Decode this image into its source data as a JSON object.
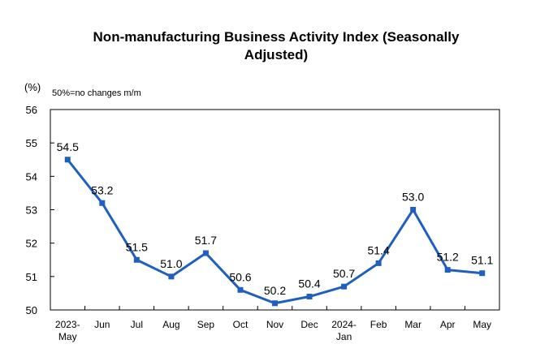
{
  "chart_data": {
    "type": "line",
    "title_lines": [
      "Non-manufacturing Business Activity Index (Seasonally",
      "Adjusted)"
    ],
    "ylabel": "(%)",
    "note": "50%=no changes m/m",
    "categories": [
      [
        "2023-",
        "May"
      ],
      [
        "Jun"
      ],
      [
        "Jul"
      ],
      [
        "Aug"
      ],
      [
        "Sep"
      ],
      [
        "Oct"
      ],
      [
        "Nov"
      ],
      [
        "Dec"
      ],
      [
        "2024-",
        "Jan"
      ],
      [
        "Feb"
      ],
      [
        "Mar"
      ],
      [
        "Apr"
      ],
      [
        "May"
      ]
    ],
    "values": [
      54.5,
      53.2,
      51.5,
      51.0,
      51.7,
      50.6,
      50.2,
      50.4,
      50.7,
      51.4,
      53.0,
      51.2,
      51.1
    ],
    "data_labels": [
      "54.5",
      "53.2",
      "51.5",
      "51.0",
      "51.7",
      "50.6",
      "50.2",
      "50.4",
      "50.7",
      "51.4",
      "53.0",
      "51.2",
      "51.1"
    ],
    "ylim": [
      50,
      56
    ],
    "yticks": [
      "50",
      "51",
      "52",
      "53",
      "54",
      "55",
      "56"
    ],
    "grid": false,
    "legend": "none",
    "line_color": "#1f5fbf",
    "marker": "square"
  }
}
